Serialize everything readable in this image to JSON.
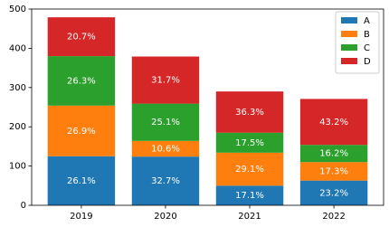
{
  "chart_data": {
    "type": "stacked-bar",
    "categories": [
      "2019",
      "2020",
      "2021",
      "2022"
    ],
    "series": [
      {
        "name": "A",
        "color": "#1f77b4",
        "values": [
          125,
          124,
          50,
          63
        ],
        "labels": [
          "26.1%",
          "32.7%",
          "17.1%",
          "23.2%"
        ]
      },
      {
        "name": "B",
        "color": "#ff7f0e",
        "values": [
          129,
          40,
          84,
          47
        ],
        "labels": [
          "26.9%",
          "10.6%",
          "29.1%",
          "17.3%"
        ]
      },
      {
        "name": "C",
        "color": "#2ca02c",
        "values": [
          126,
          95,
          51,
          44
        ],
        "labels": [
          "26.3%",
          "25.1%",
          "17.5%",
          "16.2%"
        ]
      },
      {
        "name": "D",
        "color": "#d62728",
        "values": [
          99,
          120,
          105,
          117
        ],
        "labels": [
          "20.7%",
          "31.7%",
          "36.3%",
          "43.2%"
        ]
      }
    ],
    "ylim": [
      0,
      500
    ],
    "yticks": [
      0,
      100,
      200,
      300,
      400,
      500
    ],
    "legend": "upper-right"
  }
}
